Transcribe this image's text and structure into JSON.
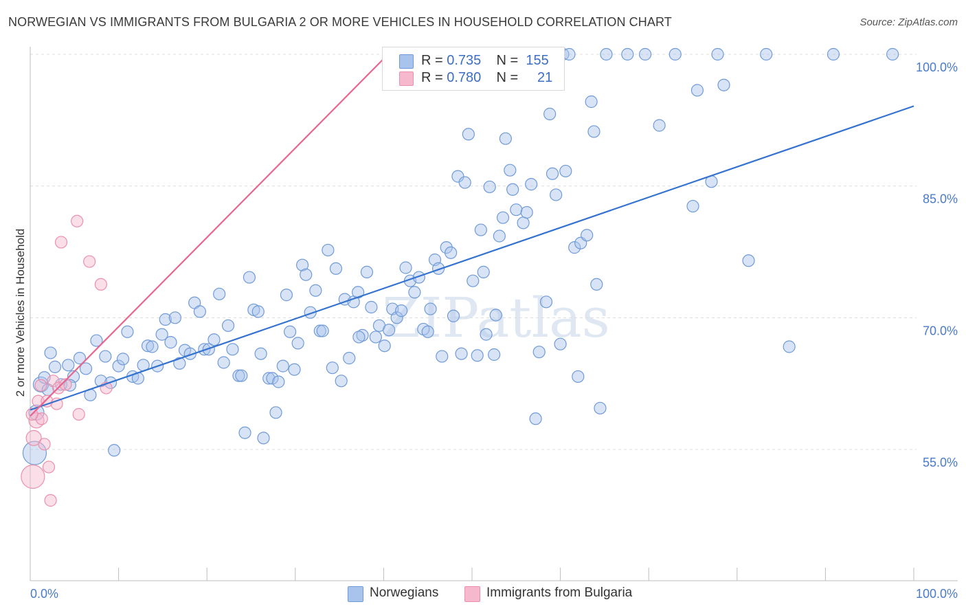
{
  "header": {
    "title": "NORWEGIAN VS IMMIGRANTS FROM BULGARIA 2 OR MORE VEHICLES IN HOUSEHOLD CORRELATION CHART",
    "source": "Source: ZipAtlas.com"
  },
  "watermark": "ZIPatlas",
  "legend": {
    "rows": [
      {
        "r_label": "R =",
        "r_value": "0.735",
        "n_label": "N =",
        "n_value": "155",
        "color": "#a8c4ec"
      },
      {
        "r_label": "R =",
        "r_value": "0.780",
        "n_label": "N =",
        "n_value": "21",
        "color": "#f6b8cc"
      }
    ]
  },
  "bottom_legend": [
    {
      "label": "Norwegians",
      "color": "#a8c4ec"
    },
    {
      "label": "Immigrants from Bulgaria",
      "color": "#f6b8cc"
    }
  ],
  "chart_data": {
    "type": "scatter",
    "title": "NORWEGIAN VS IMMIGRANTS FROM BULGARIA 2 OR MORE VEHICLES IN HOUSEHOLD CORRELATION CHART",
    "xlabel": "",
    "ylabel": "2 or more Vehicles in Household",
    "xlim": [
      0,
      100
    ],
    "ylim": [
      40,
      101
    ],
    "x_tick_labels": [
      "0.0%",
      "100.0%"
    ],
    "y_ticks": [
      55,
      70,
      85,
      100
    ],
    "y_tick_labels": [
      "55.0%",
      "70.0%",
      "85.0%",
      "100.0%"
    ],
    "grid": true,
    "legend_position": "top-center",
    "colors": {
      "blue_fill": "#a8c4ec",
      "blue_stroke": "#6f9ad8",
      "blue_line": "#3472d0",
      "pink_fill": "#f6b8cc",
      "pink_stroke": "#ec8fac",
      "pink_line": "#e8668e",
      "tick_text": "#4a7bc8"
    },
    "series": [
      {
        "name": "Norwegians",
        "trend": {
          "x": [
            0,
            100
          ],
          "y": [
            59.5,
            94.1
          ]
        },
        "points": [
          [
            0.5,
            54.6
          ],
          [
            0.7,
            59.2
          ],
          [
            1.2,
            62.4
          ],
          [
            1.6,
            63.2
          ],
          [
            2.3,
            66
          ],
          [
            2.8,
            64.4
          ],
          [
            3.5,
            62.4
          ],
          [
            4.3,
            64.6
          ],
          [
            4.9,
            63.3
          ],
          [
            5.6,
            65.4
          ],
          [
            6.3,
            64.2
          ],
          [
            6.8,
            61.2
          ],
          [
            7.5,
            67.4
          ],
          [
            8.0,
            62.8
          ],
          [
            8.5,
            65.6
          ],
          [
            9.1,
            62.6
          ],
          [
            9.5,
            54.9
          ],
          [
            10.0,
            64.5
          ],
          [
            10.5,
            65.3
          ],
          [
            11.0,
            68.4
          ],
          [
            11.6,
            63.3
          ],
          [
            12.2,
            63.1
          ],
          [
            12.8,
            64.6
          ],
          [
            13.3,
            66.8
          ],
          [
            13.8,
            66.7
          ],
          [
            14.4,
            64.5
          ],
          [
            14.9,
            68.1
          ],
          [
            15.3,
            69.8
          ],
          [
            15.9,
            67.2
          ],
          [
            16.4,
            70
          ],
          [
            16.9,
            64.8
          ],
          [
            17.5,
            66.3
          ],
          [
            18.1,
            65.9
          ],
          [
            18.6,
            71.7
          ],
          [
            19.2,
            70.7
          ],
          [
            19.7,
            66.4
          ],
          [
            20.2,
            66.4
          ],
          [
            20.8,
            67.5
          ],
          [
            21.4,
            72.7
          ],
          [
            21.9,
            64.9
          ],
          [
            22.4,
            69.1
          ],
          [
            22.9,
            66.4
          ],
          [
            23.6,
            63.4
          ],
          [
            24.3,
            56.9
          ],
          [
            24.8,
            74.6
          ],
          [
            25.3,
            70.9
          ],
          [
            25.8,
            70.7
          ],
          [
            26.1,
            65.9
          ],
          [
            26.4,
            56.3
          ],
          [
            27.0,
            63.1
          ],
          [
            27.4,
            63.1
          ],
          [
            27.8,
            59.2
          ],
          [
            28.1,
            62.7
          ],
          [
            28.6,
            64.5
          ],
          [
            29.0,
            72.6
          ],
          [
            29.4,
            68.4
          ],
          [
            29.9,
            64.1
          ],
          [
            30.3,
            67.1
          ],
          [
            30.8,
            76
          ],
          [
            31.2,
            74.9
          ],
          [
            31.7,
            70.6
          ],
          [
            32.3,
            73.1
          ],
          [
            32.8,
            68.5
          ],
          [
            33.1,
            68.5
          ],
          [
            33.7,
            77.7
          ],
          [
            34.2,
            64.3
          ],
          [
            34.6,
            75.6
          ],
          [
            35.2,
            62.8
          ],
          [
            35.6,
            72.1
          ],
          [
            36.1,
            65.4
          ],
          [
            36.6,
            71.8
          ],
          [
            37.1,
            72.9
          ],
          [
            37.6,
            68
          ],
          [
            38.1,
            75.2
          ],
          [
            38.6,
            71.2
          ],
          [
            39.1,
            67.8
          ],
          [
            39.5,
            69.1
          ],
          [
            40.1,
            66.8
          ],
          [
            40.6,
            68.6
          ],
          [
            41.0,
            71
          ],
          [
            41.5,
            70
          ],
          [
            42.0,
            70.8
          ],
          [
            42.5,
            75.7
          ],
          [
            43.0,
            74.2
          ],
          [
            43.5,
            72.9
          ],
          [
            44.0,
            74.6
          ],
          [
            44.5,
            68.7
          ],
          [
            45.0,
            68.4
          ],
          [
            45.3,
            71
          ],
          [
            45.8,
            76.6
          ],
          [
            46.2,
            75.6
          ],
          [
            46.6,
            65.6
          ],
          [
            47.1,
            78
          ],
          [
            47.6,
            77.4
          ],
          [
            47.9,
            70.2
          ],
          [
            48.4,
            86.1
          ],
          [
            48.8,
            65.9
          ],
          [
            49.2,
            85.4
          ],
          [
            49.6,
            90.9
          ],
          [
            50.1,
            74.2
          ],
          [
            50.6,
            65.7
          ],
          [
            51.0,
            80
          ],
          [
            51.3,
            75.2
          ],
          [
            51.6,
            68.1
          ],
          [
            52.0,
            84.9
          ],
          [
            52.5,
            65.8
          ],
          [
            52.7,
            70.3
          ],
          [
            53.1,
            79.3
          ],
          [
            53.5,
            81.4
          ],
          [
            53.8,
            90.4
          ],
          [
            54.3,
            86.8
          ],
          [
            54.6,
            84.6
          ],
          [
            55.0,
            82.3
          ],
          [
            55.3,
            100
          ],
          [
            55.8,
            80.8
          ],
          [
            56.2,
            82
          ],
          [
            56.7,
            85.2
          ],
          [
            57.2,
            58.5
          ],
          [
            57.6,
            66.1
          ],
          [
            58.0,
            100
          ],
          [
            58.4,
            71.8
          ],
          [
            58.8,
            93.2
          ],
          [
            59.1,
            86.4
          ],
          [
            59.5,
            84
          ],
          [
            60.0,
            67
          ],
          [
            60.3,
            100
          ],
          [
            60.6,
            86.7
          ],
          [
            61.0,
            100
          ],
          [
            61.6,
            78
          ],
          [
            62.0,
            63.3
          ],
          [
            62.3,
            78.5
          ],
          [
            63.0,
            79.4
          ],
          [
            63.5,
            94.6
          ],
          [
            63.8,
            91.2
          ],
          [
            64.1,
            73.8
          ],
          [
            64.5,
            59.7
          ],
          [
            65.2,
            100
          ],
          [
            67.6,
            100
          ],
          [
            69.6,
            100
          ],
          [
            71.2,
            91.9
          ],
          [
            73.0,
            100
          ],
          [
            75.0,
            82.7
          ],
          [
            75.5,
            95.9
          ],
          [
            77.1,
            85.5
          ],
          [
            77.8,
            100
          ],
          [
            78.5,
            96.5
          ],
          [
            81.3,
            76.5
          ],
          [
            83.3,
            100
          ],
          [
            85.9,
            66.7
          ],
          [
            90.9,
            100
          ],
          [
            97.6,
            100
          ],
          [
            2.0,
            61.8
          ],
          [
            4.5,
            62.3
          ],
          [
            23.9,
            63.4
          ],
          [
            37.2,
            67.8
          ]
        ]
      },
      {
        "name": "Immigrants from Bulgaria",
        "trend": {
          "x": [
            0,
            40.5
          ],
          "y": [
            58.8,
            100
          ]
        },
        "points": [
          [
            0.3,
            51.9
          ],
          [
            0.4,
            56.3
          ],
          [
            0.7,
            58.3
          ],
          [
            0.9,
            60.5
          ],
          [
            1.2,
            62.3
          ],
          [
            1.6,
            55.6
          ],
          [
            1.9,
            60.5
          ],
          [
            2.1,
            53.0
          ],
          [
            2.3,
            49.2
          ],
          [
            2.6,
            62.8
          ],
          [
            3.0,
            60.2
          ],
          [
            3.2,
            62.0
          ],
          [
            3.5,
            78.6
          ],
          [
            4.0,
            62.4
          ],
          [
            5.5,
            59.0
          ],
          [
            5.3,
            81.0
          ],
          [
            6.7,
            76.4
          ],
          [
            8.0,
            73.8
          ],
          [
            8.6,
            62.0
          ],
          [
            1.3,
            58.5
          ],
          [
            0.2,
            59.0
          ]
        ]
      }
    ]
  }
}
